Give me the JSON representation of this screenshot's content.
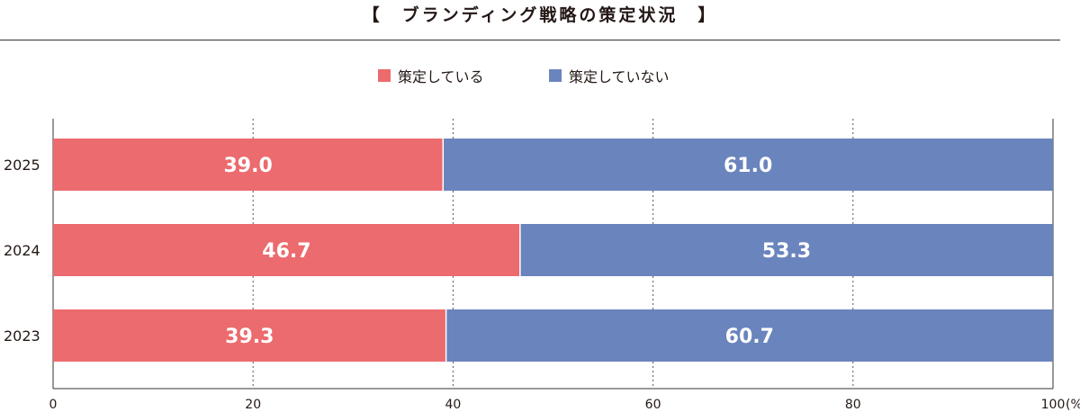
{
  "chart_data": {
    "type": "bar",
    "orientation": "horizontal",
    "stacked": true,
    "title": "【　ブランディング戦略の策定状況　】",
    "categories": [
      "2025",
      "2024",
      "2023"
    ],
    "series": [
      {
        "name": "策定している",
        "color": "#ec6b6e",
        "values": [
          39.0,
          46.7,
          39.3
        ],
        "labels": [
          "39.0",
          "46.7",
          "39.3"
        ]
      },
      {
        "name": "策定していない",
        "color": "#6a84bd",
        "values": [
          61.0,
          53.3,
          60.7
        ],
        "labels": [
          "61.0",
          "53.3",
          "60.7"
        ]
      }
    ],
    "xlim": [
      0,
      100
    ],
    "xticks": [
      "0",
      "20",
      "40",
      "60",
      "80",
      "100"
    ],
    "xunit": "(%)",
    "grid": "vertical dotted",
    "legend_position": "top"
  }
}
